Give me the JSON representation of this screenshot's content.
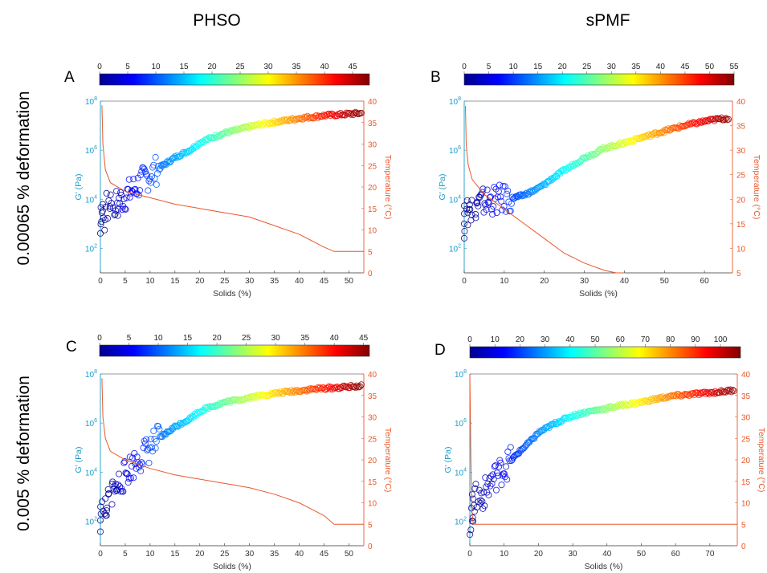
{
  "column_titles": [
    "PHSO",
    "sPMF"
  ],
  "row_titles": [
    "0.00065 % deformation",
    "0.005 % deformation"
  ],
  "colors": {
    "gprime_axis": "#1a9ac9",
    "temperature_axis": "#e8582b",
    "temperature_line": "#e8582b"
  },
  "chart_data": [
    {
      "panel": "A",
      "type": "scatter",
      "xlabel": "Solids (%)",
      "ylabel_left": "G' (Pa)",
      "ylabel_right": "Temperature (°C)",
      "xlim": [
        0,
        53
      ],
      "xticks": [
        0,
        5,
        10,
        15,
        20,
        25,
        30,
        35,
        40,
        45,
        50
      ],
      "ylim_left": [
        10,
        100000000
      ],
      "yscale_left": "log",
      "yticks_left": [
        "10^2",
        "10^4",
        "10^6",
        "10^8"
      ],
      "ylim_right": [
        0,
        40
      ],
      "yticks_right": [
        0,
        5,
        10,
        15,
        20,
        25,
        30,
        35,
        40
      ],
      "colorbar": {
        "range": [
          0,
          48
        ],
        "ticks": [
          0,
          5,
          10,
          15,
          20,
          25,
          30,
          35,
          40,
          45
        ]
      },
      "gprime_series": {
        "x": [
          0,
          0.5,
          1,
          2,
          3,
          4,
          5,
          6,
          8,
          10,
          12,
          15,
          18,
          20,
          22,
          25,
          28,
          30,
          33,
          35,
          38,
          40,
          43,
          45,
          48,
          50,
          52.5
        ],
        "y": [
          1000,
          2500,
          4000,
          5500,
          7000,
          9000,
          13000,
          20000,
          45000,
          100000,
          200000,
          500000,
          1000000,
          2000000,
          3000000,
          5000000,
          7000000,
          9000000,
          12000000,
          14000000,
          17000000,
          20000000,
          23000000,
          26000000,
          28000000,
          30000000,
          32000000
        ]
      },
      "temperature_series": {
        "x": [
          0.3,
          0.5,
          1,
          2,
          5,
          10,
          15,
          20,
          25,
          30,
          35,
          40,
          45,
          47,
          53
        ],
        "y": [
          39,
          30,
          24,
          21,
          19,
          17.5,
          16,
          15,
          14,
          13,
          11,
          9,
          6,
          5,
          5
        ]
      }
    },
    {
      "panel": "B",
      "type": "scatter",
      "xlabel": "Solids (%)",
      "ylabel_left": "G' (Pa)",
      "ylabel_right": "Temperature (°C)",
      "xlim": [
        0,
        67
      ],
      "xticks": [
        0,
        10,
        20,
        30,
        40,
        50,
        60
      ],
      "ylim_left": [
        10,
        100000000
      ],
      "yscale_left": "log",
      "yticks_left": [
        "10^2",
        "10^4",
        "10^6",
        "10^8"
      ],
      "ylim_right": [
        5,
        40
      ],
      "yticks_right": [
        5,
        10,
        15,
        20,
        25,
        30,
        35,
        40
      ],
      "colorbar": {
        "range": [
          0,
          55
        ],
        "ticks": [
          0,
          5,
          10,
          15,
          20,
          25,
          30,
          35,
          40,
          45,
          50,
          55
        ]
      },
      "gprime_series": {
        "x": [
          0,
          1,
          2,
          3,
          5,
          7,
          10,
          12,
          15,
          18,
          20,
          22,
          25,
          28,
          30,
          33,
          35,
          40,
          45,
          50,
          55,
          60,
          63,
          66
        ],
        "y": [
          1000,
          3000,
          5000,
          6000,
          8000,
          9000,
          10000,
          11000,
          15000,
          25000,
          40000,
          70000,
          150000,
          300000,
          500000,
          800000,
          1200000,
          2000000,
          3500000,
          6000000,
          10000000,
          15000000,
          18000000,
          20000000
        ]
      },
      "temperature_series": {
        "x": [
          0.3,
          0.5,
          1,
          2,
          5,
          10,
          15,
          20,
          25,
          30,
          35,
          38,
          40
        ],
        "y": [
          39,
          31,
          27,
          24,
          21,
          18,
          15,
          12,
          9,
          7,
          5.5,
          5,
          5
        ]
      }
    },
    {
      "panel": "C",
      "type": "scatter",
      "xlabel": "Solids (%)",
      "ylabel_left": "G' (Pa)",
      "ylabel_right": "Temperature (°C)",
      "xlim": [
        0,
        53
      ],
      "xticks": [
        0,
        5,
        10,
        15,
        20,
        25,
        30,
        35,
        40,
        45,
        50
      ],
      "ylim_left": [
        10,
        100000000
      ],
      "yscale_left": "log",
      "yticks_left": [
        "10^2",
        "10^4",
        "10^6",
        "10^8"
      ],
      "ylim_right": [
        0,
        40
      ],
      "yticks_right": [
        0,
        5,
        10,
        15,
        20,
        25,
        30,
        35,
        40
      ],
      "colorbar": {
        "range": [
          0,
          46
        ],
        "ticks": [
          0,
          5,
          10,
          15,
          20,
          25,
          30,
          35,
          40,
          45
        ]
      },
      "gprime_series": {
        "x": [
          0,
          0.5,
          1,
          2,
          3,
          4,
          5,
          6,
          8,
          10,
          12,
          15,
          18,
          20,
          22,
          25,
          28,
          30,
          33,
          35,
          38,
          40,
          43,
          45,
          48,
          50,
          52.5
        ],
        "y": [
          100,
          200,
          500,
          1000,
          2000,
          4000,
          8000,
          15000,
          40000,
          100000,
          250000,
          700000,
          1500000,
          3000000,
          4500000,
          7000000,
          9000000,
          11000000,
          14000000,
          16000000,
          19000000,
          21000000,
          24000000,
          26000000,
          28000000,
          30000000,
          32000000
        ]
      },
      "temperature_series": {
        "x": [
          0.3,
          0.5,
          1,
          2,
          5,
          10,
          15,
          20,
          25,
          30,
          35,
          40,
          45,
          47,
          53
        ],
        "y": [
          39,
          30,
          25,
          22,
          20,
          18,
          16.5,
          15.5,
          14.5,
          13.5,
          12,
          10,
          7,
          5,
          5
        ]
      }
    },
    {
      "panel": "D",
      "type": "scatter",
      "xlabel": "Solids (%)",
      "ylabel_left": "G' (Pa)",
      "ylabel_right": "Temperature (°C)",
      "xlim": [
        0,
        78
      ],
      "xticks": [
        0,
        10,
        20,
        30,
        40,
        50,
        60,
        70
      ],
      "ylim_left": [
        10,
        100000000
      ],
      "yscale_left": "log",
      "yticks_left": [
        "10^2",
        "10^4",
        "10^6",
        "10^8"
      ],
      "ylim_right": [
        0,
        40
      ],
      "yticks_right": [
        0,
        5,
        10,
        15,
        20,
        25,
        30,
        35,
        40
      ],
      "colorbar": {
        "range": [
          0,
          108
        ],
        "ticks": [
          0,
          10,
          20,
          30,
          40,
          50,
          60,
          70,
          80,
          90,
          100
        ]
      },
      "gprime_series": {
        "x": [
          0,
          0.5,
          1,
          2,
          3,
          4,
          5,
          6,
          7,
          8,
          10,
          12,
          15,
          18,
          20,
          25,
          30,
          35,
          40,
          45,
          50,
          55,
          60,
          65,
          70,
          75,
          77
        ],
        "y": [
          100,
          200,
          500,
          800,
          1000,
          1200,
          2000,
          4000,
          6000,
          8000,
          15000,
          30000,
          80000,
          200000,
          400000,
          1000000,
          2000000,
          3000000,
          4000000,
          5500000,
          7000000,
          10000000,
          13000000,
          15000000,
          17000000,
          20000000,
          22000000
        ]
      },
      "temperature_series": {
        "x": [
          0,
          0.3,
          0.6,
          1,
          78
        ],
        "y": [
          40,
          20,
          8,
          5,
          5
        ]
      }
    }
  ]
}
